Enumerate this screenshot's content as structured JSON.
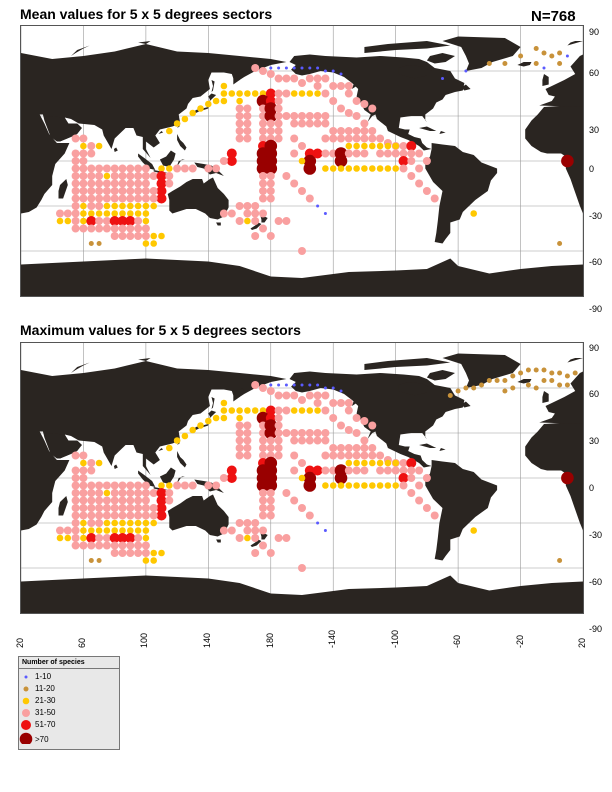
{
  "panels": [
    {
      "title": "Mean values for 5 x 5 degrees sectors",
      "n_label": "N=768"
    },
    {
      "title": "Maximum values for 5 x 5 degrees sectors",
      "n_label": ""
    }
  ],
  "lat_ticks": [
    "90",
    "60",
    "30",
    "0",
    "-30",
    "-60",
    "-90"
  ],
  "lon_ticks": [
    "20",
    "60",
    "100",
    "140",
    "180",
    "-140",
    "-100",
    "-60",
    "-20",
    "20"
  ],
  "legend": {
    "title": "Number of species",
    "classes": [
      {
        "label": "1-10",
        "color": "#5a5aff"
      },
      {
        "label": "11-20",
        "color": "#c8923a"
      },
      {
        "label": "21-30",
        "color": "#ffc800"
      },
      {
        "label": "31-50",
        "color": "#f9a0a0"
      },
      {
        "label": "51-70",
        "color": "#ee1111"
      },
      {
        "label": ">70",
        "color": "#990000"
      }
    ]
  },
  "colors": {
    "land": "#2a2521",
    "grid": "#9a9a9a",
    "ocean": "#ffffff"
  }
}
